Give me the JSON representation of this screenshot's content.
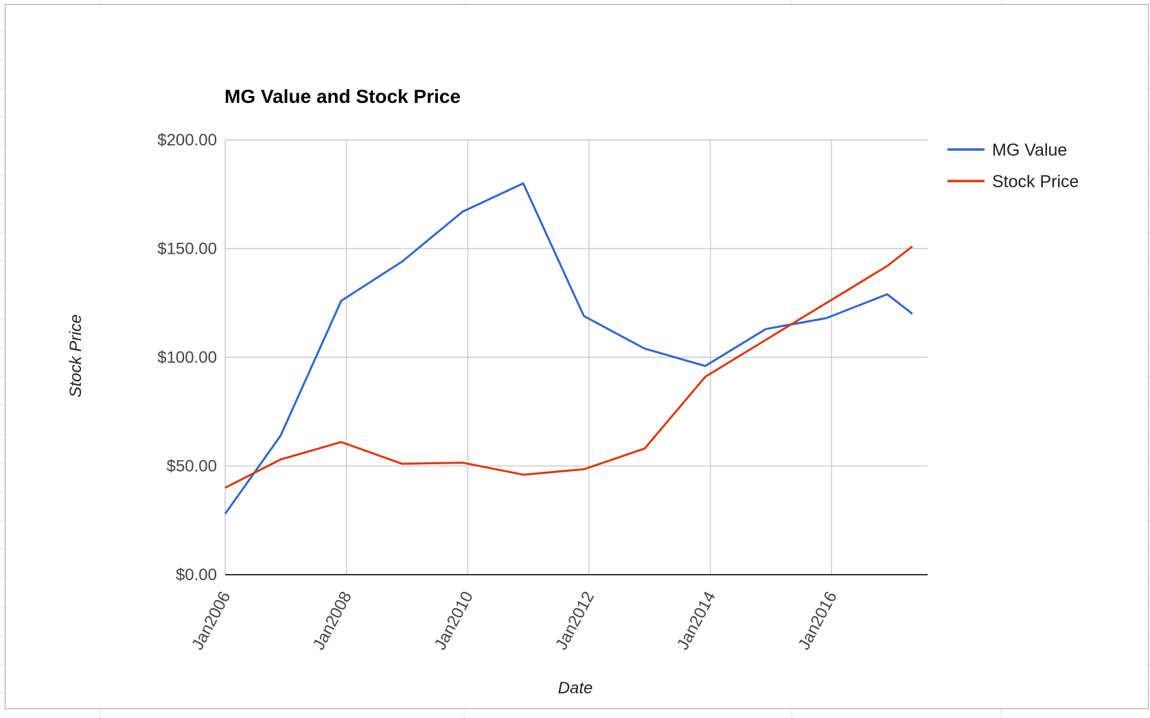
{
  "chart_data": {
    "type": "line",
    "title": "MG Value and Stock Price",
    "xlabel": "Date",
    "ylabel": "Stock Price",
    "ylim": [
      0,
      200
    ],
    "xlim": [
      "2006-01-01",
      "2017-08-01"
    ],
    "yticks": [
      {
        "value": 0,
        "label": "$0.00"
      },
      {
        "value": 50,
        "label": "$50.00"
      },
      {
        "value": 100,
        "label": "$100.00"
      },
      {
        "value": 150,
        "label": "$150.00"
      },
      {
        "value": 200,
        "label": "$200.00"
      }
    ],
    "xticks": [
      {
        "date": "2006-01-01",
        "label": "Jan2006"
      },
      {
        "date": "2008-01-01",
        "label": "Jan2008"
      },
      {
        "date": "2010-01-01",
        "label": "Jan2010"
      },
      {
        "date": "2012-01-01",
        "label": "Jan2012"
      },
      {
        "date": "2014-01-01",
        "label": "Jan2014"
      },
      {
        "date": "2016-01-01",
        "label": "Jan2016"
      }
    ],
    "grid": true,
    "legend_position": "right",
    "series": [
      {
        "name": "MG Value",
        "color": "#3366cc",
        "points": [
          {
            "x": "2006-01-01",
            "y": 28
          },
          {
            "x": "2006-12-01",
            "y": 64
          },
          {
            "x": "2007-12-01",
            "y": 126
          },
          {
            "x": "2008-12-01",
            "y": 144
          },
          {
            "x": "2009-12-01",
            "y": 167
          },
          {
            "x": "2010-12-01",
            "y": 180
          },
          {
            "x": "2011-12-01",
            "y": 119
          },
          {
            "x": "2012-12-01",
            "y": 104
          },
          {
            "x": "2013-12-01",
            "y": 96
          },
          {
            "x": "2014-12-01",
            "y": 113
          },
          {
            "x": "2015-12-01",
            "y": 118
          },
          {
            "x": "2016-12-01",
            "y": 129
          },
          {
            "x": "2017-05-01",
            "y": 120
          }
        ]
      },
      {
        "name": "Stock Price",
        "color": "#dc3912",
        "points": [
          {
            "x": "2006-01-01",
            "y": 40
          },
          {
            "x": "2006-12-01",
            "y": 53
          },
          {
            "x": "2007-12-01",
            "y": 61
          },
          {
            "x": "2008-12-01",
            "y": 51
          },
          {
            "x": "2009-12-01",
            "y": 51.5
          },
          {
            "x": "2010-12-01",
            "y": 46
          },
          {
            "x": "2011-12-01",
            "y": 48.5
          },
          {
            "x": "2012-12-01",
            "y": 58
          },
          {
            "x": "2013-12-01",
            "y": 91
          },
          {
            "x": "2014-12-01",
            "y": 108
          },
          {
            "x": "2015-12-01",
            "y": 125
          },
          {
            "x": "2016-12-01",
            "y": 142
          },
          {
            "x": "2017-05-01",
            "y": 151
          }
        ]
      }
    ]
  }
}
